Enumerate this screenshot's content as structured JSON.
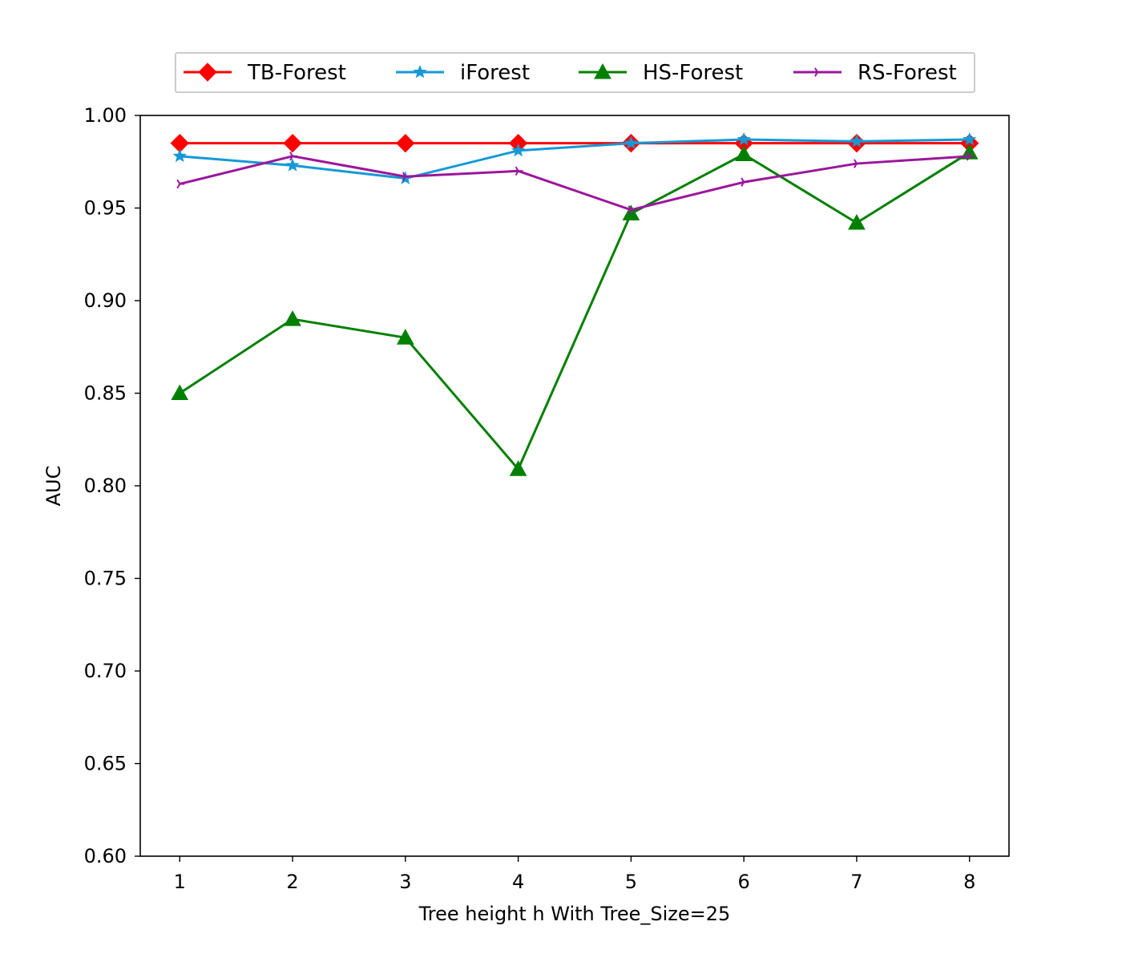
{
  "chart_data": {
    "type": "line",
    "title": "",
    "xlabel": "Tree height h With Tree_Size=25",
    "ylabel": "AUC",
    "x": [
      1,
      2,
      3,
      4,
      5,
      6,
      7,
      8
    ],
    "xlim": [
      0.65,
      8.35
    ],
    "ylim": [
      0.6,
      1.0
    ],
    "x_ticks": [
      "1",
      "2",
      "3",
      "4",
      "5",
      "6",
      "7",
      "8"
    ],
    "y_ticks": [
      "0.60",
      "0.65",
      "0.70",
      "0.75",
      "0.80",
      "0.85",
      "0.90",
      "0.95",
      "1.00"
    ],
    "grid": false,
    "legend_position": "top, outside plot, single row",
    "series": [
      {
        "name": "TB-Forest",
        "color": "#ff0000",
        "marker": "diamond",
        "values": [
          0.985,
          0.985,
          0.985,
          0.985,
          0.985,
          0.985,
          0.985,
          0.985
        ]
      },
      {
        "name": "iForest",
        "color": "#1499d6",
        "marker": "star",
        "values": [
          0.978,
          0.973,
          0.966,
          0.981,
          0.985,
          0.987,
          0.986,
          0.987
        ]
      },
      {
        "name": "HS-Forest",
        "color": "#008000",
        "marker": "triangle",
        "values": [
          0.85,
          0.89,
          0.88,
          0.809,
          0.947,
          0.979,
          0.942,
          0.98
        ]
      },
      {
        "name": "RS-Forest",
        "color": "#9b179b",
        "marker": "tri-right",
        "values": [
          0.963,
          0.978,
          0.967,
          0.97,
          0.949,
          0.964,
          0.974,
          0.978
        ]
      }
    ]
  }
}
